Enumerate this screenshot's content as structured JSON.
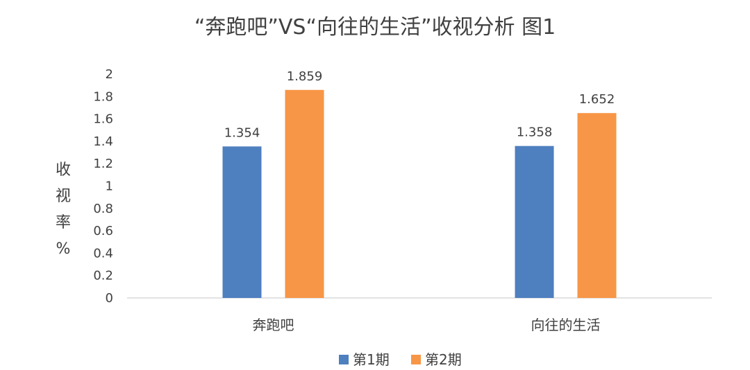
{
  "chart_data": {
    "type": "bar",
    "title": "“奔跑吧”VS“向往的生活”收视分析  图1",
    "ylabel": "收视率%",
    "xlabel": "",
    "categories": [
      "奔跑吧",
      "向往的生活"
    ],
    "series": [
      {
        "name": "第1期",
        "values": [
          1.354,
          1.358
        ],
        "color": "#4e7fbf"
      },
      {
        "name": "第2期",
        "values": [
          1.859,
          1.652
        ],
        "color": "#f79646"
      }
    ],
    "ylim": [
      0,
      2
    ],
    "yticks": [
      "0",
      "0.2",
      "0.4",
      "0.6",
      "0.8",
      "1",
      "1.2",
      "1.4",
      "1.6",
      "1.8",
      "2"
    ],
    "data_labels": [
      [
        "1.354",
        "1.358"
      ],
      [
        "1.859",
        "1.652"
      ]
    ],
    "grid": false,
    "legend": "bottom"
  }
}
